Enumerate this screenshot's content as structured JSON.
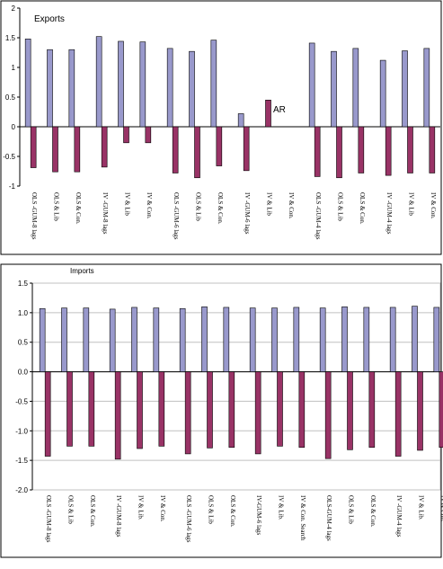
{
  "colors": {
    "pos_fill": "#9999cc",
    "neg_fill": "#993366",
    "bar_stroke": "#000000",
    "frame": "#000000",
    "grid": "#c0c0c0"
  },
  "footnote": "",
  "chart_data": [
    {
      "type": "bar",
      "title": "Exports",
      "annotation": "AR",
      "ylim": [
        -1,
        2
      ],
      "yticks": [
        "-1",
        "-0.5",
        "0",
        "0.5",
        "1",
        "1.5",
        "2"
      ],
      "ytick_values": [
        -1,
        -0.5,
        0,
        0.5,
        1,
        1.5,
        2
      ],
      "grid": false,
      "categories": [
        "OLS -GUM-8 lags",
        "OLS & Lib",
        "OLS & Con.",
        "IV -GUM-8 lags",
        "IV & Lib",
        "IV & Con.",
        "OLS -GUM-6 lags",
        "OLS & Lib",
        "OLS & Con.",
        "IV -GUM-6 lags",
        "IV & Lib",
        "IV & Con.",
        "OLS -GUM-4 lags",
        "OLS & Lib",
        "OLS & Con.",
        "IV -GUM-4 lags",
        "IV & Lib",
        "IV & Con."
      ],
      "series": [
        {
          "values": [
            1.48,
            1.3,
            1.3,
            1.52,
            1.44,
            1.43,
            1.32,
            1.27,
            1.46,
            0.22,
            null,
            null,
            1.41,
            1.27,
            1.32,
            1.12,
            1.28,
            1.32
          ]
        },
        {
          "values": [
            -0.69,
            -0.76,
            -0.76,
            -0.68,
            -0.27,
            -0.27,
            -0.78,
            -0.86,
            -0.66,
            -0.74,
            0.45,
            null,
            -0.84,
            -0.86,
            -0.78,
            -0.82,
            -0.78,
            -0.78
          ]
        }
      ]
    },
    {
      "type": "bar",
      "title": "Imports",
      "ylim": [
        -2,
        1.5
      ],
      "yticks": [
        "-2.0",
        "-1.5",
        "-1.0",
        "-0.5",
        "0.0",
        "0.5",
        "1.0",
        "1.5"
      ],
      "ytick_values": [
        -2,
        -1.5,
        -1,
        -0.5,
        0,
        0.5,
        1,
        1.5
      ],
      "grid": true,
      "categories": [
        "OLS -GUM-8 lags",
        "OLS & Lib",
        "OLS & Con.",
        "IV -GUM-8 lags",
        "IV & Lib.",
        "IV & Con.",
        "OLS -GUM-6 lags",
        "OLS & Lib",
        "OLS & Con.",
        "IV-GUM-6 lags",
        "IV & Lib.",
        "IV & Con. Search",
        "OLS-GUM-4 lags",
        "OLS & Lib",
        "OLS & Con.",
        "IV -GUM-4 lags",
        "IV & Lib.",
        "IV & Con."
      ],
      "series": [
        {
          "values": [
            1.07,
            1.08,
            1.08,
            1.06,
            1.09,
            1.08,
            1.07,
            1.1,
            1.09,
            1.08,
            1.08,
            1.09,
            1.08,
            1.1,
            1.09,
            1.09,
            1.11,
            1.09
          ]
        },
        {
          "values": [
            -1.43,
            -1.26,
            -1.26,
            -1.48,
            -1.3,
            -1.26,
            -1.39,
            -1.29,
            -1.28,
            -1.39,
            -1.26,
            -1.28,
            -1.47,
            -1.32,
            -1.28,
            -1.43,
            -1.33,
            -1.28
          ]
        }
      ]
    }
  ]
}
